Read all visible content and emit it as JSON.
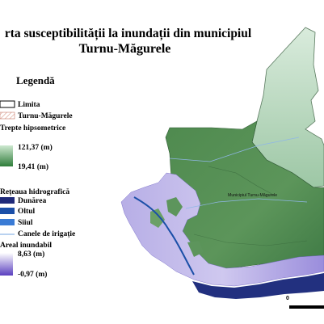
{
  "title": {
    "line1": "rta susceptibilității la inundații din municipiul",
    "line2": "Turnu-Măgurele"
  },
  "legend": {
    "title": "Legendă",
    "limit": {
      "label1": "Limita",
      "label2": "Turnu-Măgurele"
    },
    "elevation": {
      "title": "Trepte hipsometrice",
      "max": "121,37 (m)",
      "min": "19,41 (m)",
      "color_high": "#cde8d0",
      "color_low": "#2f7d3a"
    },
    "hydro": {
      "title": "Rețeaua hidrografică",
      "items": [
        {
          "label": "Dunărea",
          "color": "#1f2a7a"
        },
        {
          "label": "Oltul",
          "color": "#1b4fa8"
        },
        {
          "label": "Siiul",
          "color": "#3a7bd5"
        }
      ],
      "canal": {
        "label": "Canele de irigație",
        "color": "#8fb7e6"
      }
    },
    "flood": {
      "title": "Areal inundabil",
      "max": "8,63 (m)",
      "min": "-0,97 (m)",
      "color_high": "#ffffff",
      "color_low": "#5a3fbf"
    }
  },
  "map": {
    "place_label": "Municipiul Turnu-Măgurele"
  },
  "scale": {
    "zero": "0"
  }
}
